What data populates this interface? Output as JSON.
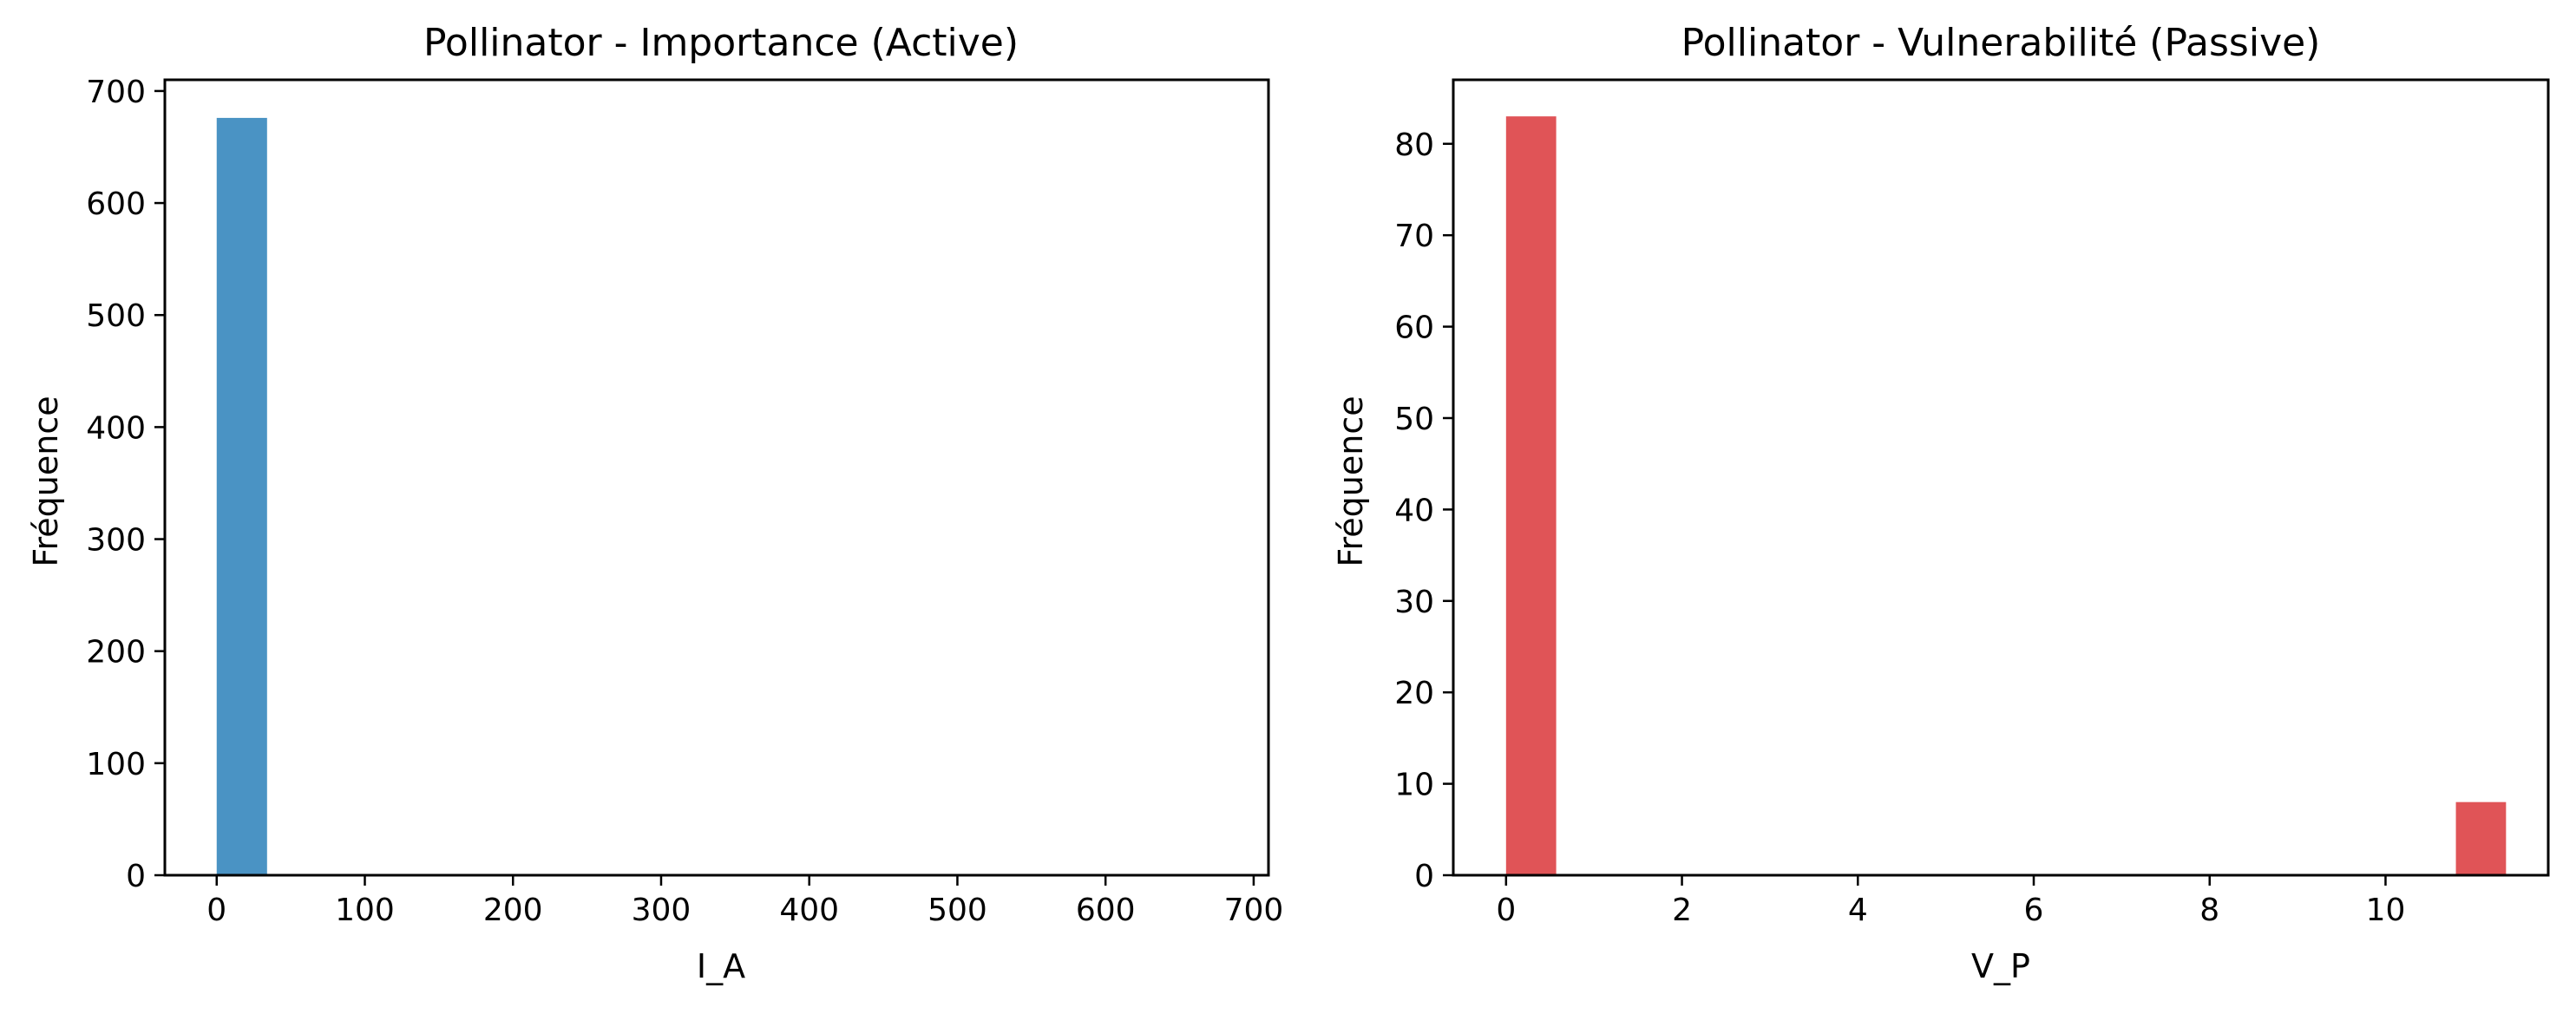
{
  "chart_data": [
    {
      "type": "bar",
      "title": "Pollinator - Importance (Active)",
      "xlabel": "I_A",
      "ylabel": "Fréquence",
      "xlim": [
        -35,
        710
      ],
      "ylim": [
        0,
        710
      ],
      "xticks": [
        0,
        100,
        200,
        300,
        400,
        500,
        600,
        700
      ],
      "yticks": [
        0,
        100,
        200,
        300,
        400,
        500,
        600,
        700
      ],
      "grid": false,
      "color": "#4a93c4",
      "bars": [
        {
          "x0": 0,
          "x1": 34,
          "value": 676
        }
      ]
    },
    {
      "type": "bar",
      "title": "Pollinator - Vulnerabilité (Passive)",
      "xlabel": "V_P",
      "ylabel": "Fréquence",
      "xlim": [
        -0.6,
        11.85
      ],
      "ylim": [
        0,
        87
      ],
      "xticks": [
        0,
        2,
        4,
        6,
        8,
        10
      ],
      "yticks": [
        0,
        10,
        20,
        30,
        40,
        50,
        60,
        70,
        80
      ],
      "grid": false,
      "color": "#e05457",
      "bars": [
        {
          "x0": 0,
          "x1": 0.57,
          "value": 83
        },
        {
          "x0": 10.8,
          "x1": 11.37,
          "value": 8
        }
      ]
    }
  ]
}
